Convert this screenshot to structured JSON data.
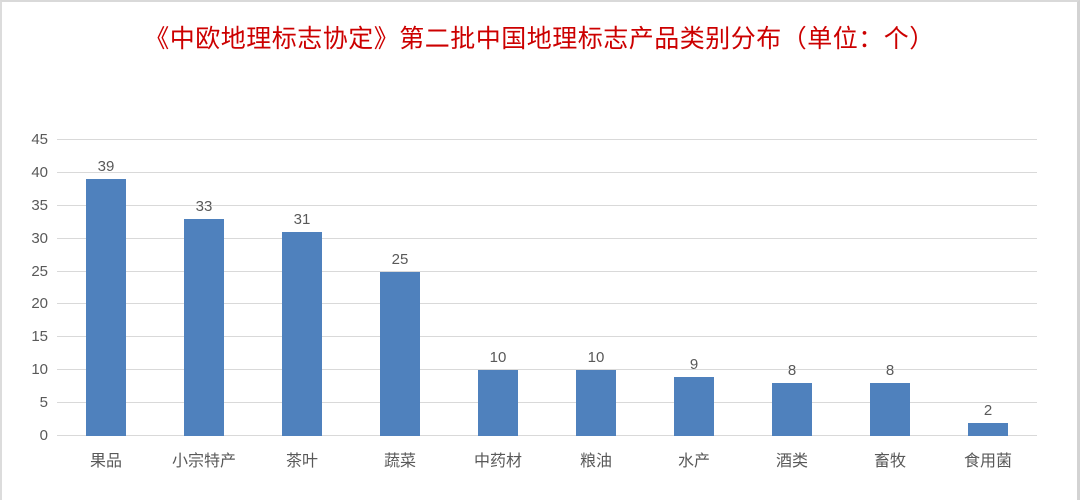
{
  "page": {
    "background": "#ffffff",
    "border_color": "#d9d9d9"
  },
  "chart_data": {
    "type": "bar",
    "title": "《中欧地理标志协定》第二批中国地理标志产品类别分布（单位：个）",
    "title_color": "#cc0000",
    "categories": [
      "果品",
      "小宗特产",
      "茶叶",
      "蔬菜",
      "中药材",
      "粮油",
      "水产",
      "酒类",
      "畜牧",
      "食用菌"
    ],
    "values": [
      39,
      33,
      31,
      25,
      10,
      10,
      9,
      8,
      8,
      2
    ],
    "xlabel": "",
    "ylabel": "",
    "ylim": [
      0,
      45
    ],
    "yticks": [
      0,
      5,
      10,
      15,
      20,
      25,
      30,
      35,
      40,
      45
    ],
    "grid": true,
    "legend": "none",
    "bar_color": "#4f81bd",
    "gridline_color": "#d9d9d9",
    "axis_label_color": "#595959",
    "value_label_color": "#595959"
  }
}
